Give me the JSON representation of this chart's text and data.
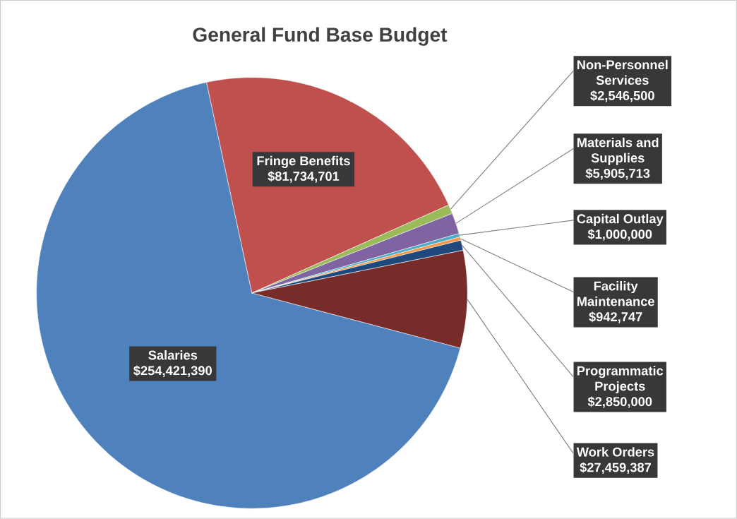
{
  "chart_data": {
    "type": "pie",
    "title": "General Fund Base Budget",
    "categories": [
      "Salaries",
      "Fringe Benefits",
      "Non-Personnel Services",
      "Materials and Supplies",
      "Capital Outlay",
      "Facility Maintenance",
      "Programmatic Projects",
      "Work Orders"
    ],
    "values": [
      254421390,
      81734701,
      2546500,
      5905713,
      1000000,
      942747,
      2850000,
      27459387
    ],
    "colors": [
      "#4f81bd",
      "#c0504d",
      "#9bbb59",
      "#8064a2",
      "#4bacc6",
      "#f79646",
      "#1f497d",
      "#772c2a"
    ],
    "value_labels": [
      "$254,421,390",
      "$81,734,701",
      "$2,546,500",
      "$5,905,713",
      "$1,000,000",
      "$942,747",
      "$2,850,000",
      "$27,459,387"
    ]
  }
}
